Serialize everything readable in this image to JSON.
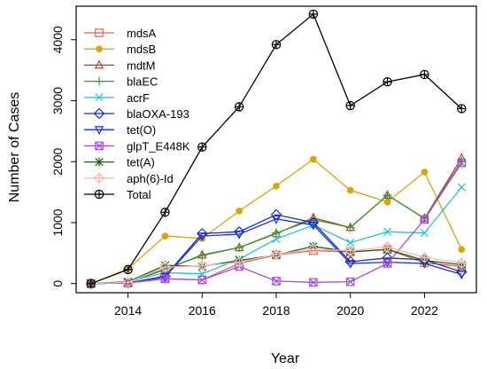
{
  "chart_data": {
    "type": "line",
    "title": "",
    "xlabel": "Year",
    "ylabel": "Number of Cases",
    "xlim": [
      2012.6,
      2023.4
    ],
    "ylim": [
      -150,
      4550
    ],
    "xticks": [
      2014,
      2016,
      2018,
      2020,
      2022
    ],
    "yticks": [
      0,
      1000,
      2000,
      3000,
      4000
    ],
    "x": [
      2013,
      2014,
      2015,
      2016,
      2017,
      2018,
      2019,
      2020,
      2021,
      2022,
      2023
    ],
    "grid": false,
    "legend": "top-left",
    "series": [
      {
        "name": "mdsA",
        "color": "#e8604c",
        "marker": "square",
        "values": [
          0,
          10,
          80,
          60,
          330,
          470,
          540,
          520,
          560,
          340,
          280
        ]
      },
      {
        "name": "mdsB",
        "color": "#d8a510",
        "marker": "circle-filled",
        "values": [
          0,
          240,
          780,
          740,
          1190,
          1600,
          2040,
          1530,
          1340,
          1830,
          560
        ]
      },
      {
        "name": "mdtM",
        "color": "#c0392b",
        "marker": "triangle-up",
        "values": [
          0,
          20,
          230,
          470,
          590,
          820,
          1080,
          920,
          1450,
          1070,
          2060
        ]
      },
      {
        "name": "blaEC",
        "color": "#2ca02c",
        "marker": "plus",
        "values": [
          0,
          20,
          240,
          460,
          590,
          830,
          1050,
          920,
          1450,
          1070,
          2000
        ]
      },
      {
        "name": "acrF",
        "color": "#22c4d8",
        "marker": "x",
        "values": [
          0,
          30,
          180,
          160,
          400,
          730,
          960,
          670,
          850,
          830,
          1580
        ]
      },
      {
        "name": "blaOXA-193",
        "color": "#1f2fa6",
        "marker": "diamond",
        "values": [
          0,
          10,
          120,
          820,
          850,
          1130,
          1000,
          360,
          420,
          390,
          190
        ]
      },
      {
        "name": "tet(O)",
        "color": "#1c2fd8",
        "marker": "triangle-down",
        "values": [
          0,
          10,
          110,
          780,
          810,
          1060,
          960,
          330,
          350,
          330,
          150
        ]
      },
      {
        "name": "glpT_E448K",
        "color": "#a64ce0",
        "marker": "square-x",
        "values": [
          0,
          10,
          80,
          60,
          280,
          40,
          20,
          30,
          330,
          1050,
          1980
        ]
      },
      {
        "name": "tet(A)",
        "color": "#1b5e20",
        "marker": "asterisk",
        "values": [
          0,
          30,
          300,
          280,
          380,
          470,
          610,
          520,
          560,
          380,
          310
        ]
      },
      {
        "name": "aph(6)-Id",
        "color": "#f4b9b0",
        "marker": "diamond-plus",
        "values": [
          0,
          20,
          270,
          290,
          350,
          480,
          560,
          540,
          600,
          430,
          340
        ]
      },
      {
        "name": "Total",
        "color": "#000000",
        "marker": "circle-plus",
        "values": [
          0,
          230,
          1170,
          2240,
          2900,
          3920,
          4420,
          2920,
          3310,
          3430,
          2870
        ]
      }
    ]
  }
}
